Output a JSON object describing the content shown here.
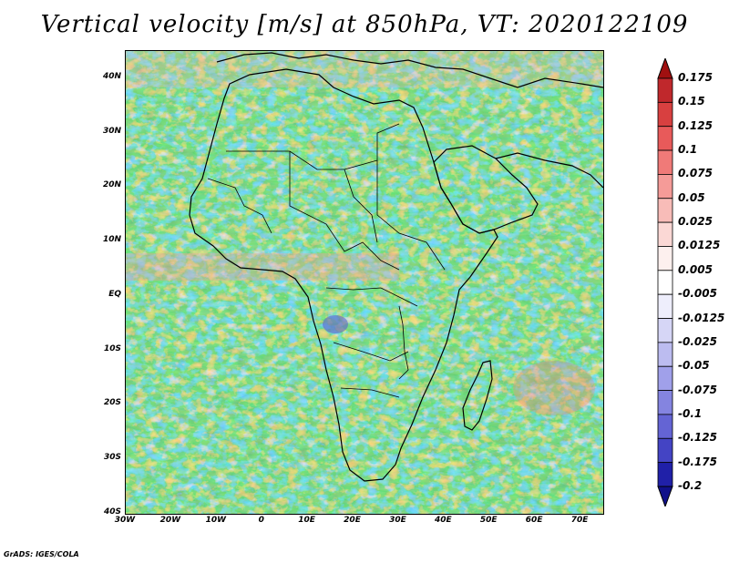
{
  "title": "Vertical velocity [m/s] at 850hPa, VT: 2020122109",
  "footer": "GrADS: IGES/COLA",
  "lat_labels": [
    "40N",
    "30N",
    "20N",
    "10N",
    "EQ",
    "10S",
    "20S",
    "30S",
    "40S"
  ],
  "lat_values": [
    40,
    30,
    20,
    10,
    0,
    -10,
    -20,
    -30,
    -40
  ],
  "lon_labels": [
    "30W",
    "20W",
    "10W",
    "0",
    "10E",
    "20E",
    "30E",
    "40E",
    "50E",
    "60E",
    "70E"
  ],
  "lon_values": [
    -30,
    -20,
    -10,
    0,
    10,
    20,
    30,
    40,
    50,
    60,
    70
  ],
  "map_extent": {
    "lon_min": -30,
    "lon_max": 75,
    "lat_min": -40,
    "lat_max": 45
  },
  "colorbar": {
    "levels": [
      "0.175",
      "0.15",
      "0.125",
      "0.1",
      "0.075",
      "0.05",
      "0.025",
      "0.0125",
      "0.005",
      "-0.005",
      "-0.0125",
      "-0.025",
      "-0.05",
      "-0.075",
      "-0.1",
      "-0.125",
      "-0.175",
      "-0.2"
    ],
    "colors": [
      "#a01010",
      "#c0282c",
      "#d84040",
      "#e85a5a",
      "#f07a78",
      "#f59b98",
      "#f8bcb8",
      "#fbd8d5",
      "#fdf0ee",
      "#ffffff",
      "#eeeefc",
      "#d6d6f6",
      "#bcbcf0",
      "#a0a0ea",
      "#8484e0",
      "#6464d4",
      "#4444c4",
      "#2020a8",
      "#10108a"
    ]
  },
  "regions": [
    {
      "name": "ITCZ band Atlantic",
      "lon": [
        -30,
        10
      ],
      "lat": [
        3,
        7
      ],
      "sign": "up"
    },
    {
      "name": "Angola lows",
      "lon": [
        12,
        20
      ],
      "lat": [
        -8,
        -3
      ],
      "sign": "down"
    },
    {
      "name": "Mozambique channel",
      "lon": [
        56,
        66
      ],
      "lat": [
        -15,
        -8
      ],
      "sign": "up"
    }
  ]
}
